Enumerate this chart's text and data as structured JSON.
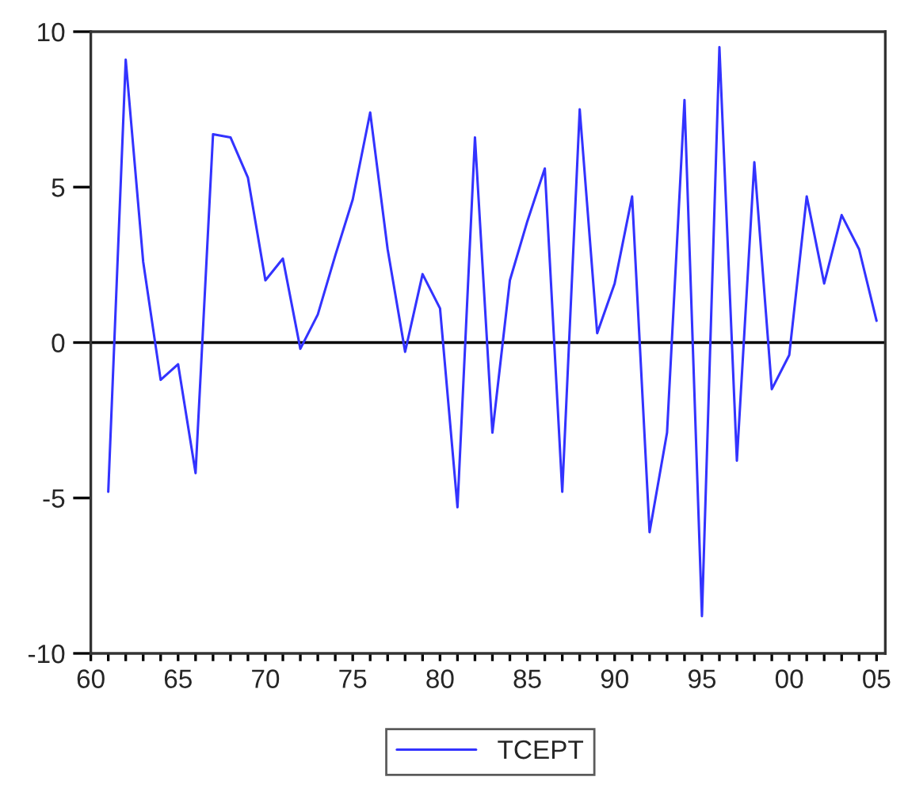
{
  "chart_data": {
    "type": "line",
    "x": [
      1961,
      1962,
      1963,
      1964,
      1965,
      1966,
      1967,
      1968,
      1969,
      1970,
      1971,
      1972,
      1973,
      1974,
      1975,
      1976,
      1977,
      1978,
      1979,
      1980,
      1981,
      1982,
      1983,
      1984,
      1985,
      1986,
      1987,
      1988,
      1989,
      1990,
      1991,
      1992,
      1993,
      1994,
      1995,
      1996,
      1997,
      1998,
      1999,
      2000,
      2001,
      2002,
      2003,
      2004,
      2005
    ],
    "series": [
      {
        "name": "TCEPT",
        "color": "#3333ff",
        "values": [
          -4.8,
          9.1,
          2.6,
          -1.2,
          -0.7,
          -4.2,
          6.7,
          6.6,
          5.3,
          2.0,
          2.7,
          -0.2,
          0.9,
          2.8,
          4.6,
          7.4,
          3.0,
          -0.3,
          2.2,
          1.1,
          -5.3,
          6.6,
          -2.9,
          2.0,
          3.9,
          5.6,
          -4.8,
          7.5,
          0.3,
          1.9,
          4.7,
          -6.1,
          -2.9,
          7.8,
          -8.8,
          9.5,
          -3.8,
          5.8,
          -1.5,
          -0.4,
          4.7,
          1.9,
          4.1,
          3.0,
          0.7
        ]
      }
    ],
    "xlim": [
      1960,
      2005.5
    ],
    "xticks": [
      {
        "value": 1960,
        "label": "60"
      },
      {
        "value": 1961,
        "label": null
      },
      {
        "value": 1962,
        "label": null
      },
      {
        "value": 1963,
        "label": null
      },
      {
        "value": 1964,
        "label": null
      },
      {
        "value": 1965,
        "label": "65"
      },
      {
        "value": 1966,
        "label": null
      },
      {
        "value": 1967,
        "label": null
      },
      {
        "value": 1968,
        "label": null
      },
      {
        "value": 1969,
        "label": null
      },
      {
        "value": 1970,
        "label": "70"
      },
      {
        "value": 1971,
        "label": null
      },
      {
        "value": 1972,
        "label": null
      },
      {
        "value": 1973,
        "label": null
      },
      {
        "value": 1974,
        "label": null
      },
      {
        "value": 1975,
        "label": "75"
      },
      {
        "value": 1976,
        "label": null
      },
      {
        "value": 1977,
        "label": null
      },
      {
        "value": 1978,
        "label": null
      },
      {
        "value": 1979,
        "label": null
      },
      {
        "value": 1980,
        "label": "80"
      },
      {
        "value": 1981,
        "label": null
      },
      {
        "value": 1982,
        "label": null
      },
      {
        "value": 1983,
        "label": null
      },
      {
        "value": 1984,
        "label": null
      },
      {
        "value": 1985,
        "label": "85"
      },
      {
        "value": 1986,
        "label": null
      },
      {
        "value": 1987,
        "label": null
      },
      {
        "value": 1988,
        "label": null
      },
      {
        "value": 1989,
        "label": null
      },
      {
        "value": 1990,
        "label": "90"
      },
      {
        "value": 1991,
        "label": null
      },
      {
        "value": 1992,
        "label": null
      },
      {
        "value": 1993,
        "label": null
      },
      {
        "value": 1994,
        "label": null
      },
      {
        "value": 1995,
        "label": "95"
      },
      {
        "value": 1996,
        "label": null
      },
      {
        "value": 1997,
        "label": null
      },
      {
        "value": 1998,
        "label": null
      },
      {
        "value": 1999,
        "label": null
      },
      {
        "value": 2000,
        "label": "00"
      },
      {
        "value": 2001,
        "label": null
      },
      {
        "value": 2002,
        "label": null
      },
      {
        "value": 2003,
        "label": null
      },
      {
        "value": 2004,
        "label": null
      },
      {
        "value": 2005,
        "label": "05"
      }
    ],
    "ylim": [
      -10,
      10
    ],
    "yticks": [
      -10,
      -5,
      0,
      5,
      10
    ],
    "ref_lines": [
      {
        "axis": "y",
        "value": 0,
        "color": "#000000"
      }
    ],
    "grid": false,
    "legend": "bottom",
    "marker": "none",
    "line_style": "solid"
  }
}
